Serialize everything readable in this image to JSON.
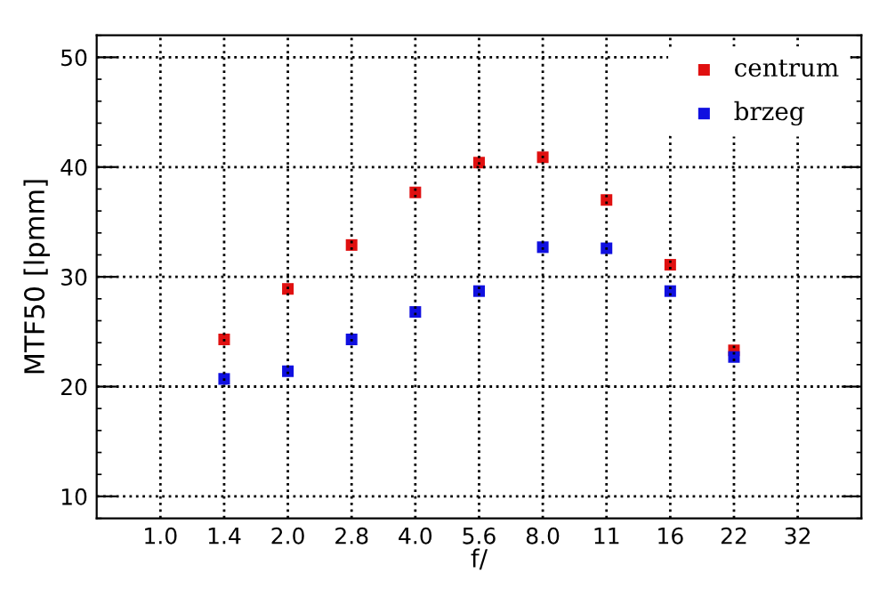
{
  "chart_data": {
    "type": "scatter",
    "xlabel": "f/",
    "ylabel": "MTF50 [lpmm]",
    "categories": [
      "1.0",
      "1.4",
      "2.0",
      "2.8",
      "4.0",
      "5.6",
      "8.0",
      "11",
      "16",
      "22",
      "32"
    ],
    "series": [
      {
        "name": "centrum",
        "color": "#e01010",
        "values": [
          null,
          24.3,
          28.9,
          32.9,
          37.7,
          40.4,
          40.9,
          37.0,
          31.1,
          23.3,
          null
        ]
      },
      {
        "name": "brzeg",
        "color": "#1010e0",
        "values": [
          null,
          20.7,
          21.4,
          24.3,
          26.8,
          28.7,
          32.7,
          32.6,
          28.7,
          22.7,
          null
        ]
      }
    ],
    "ylim": [
      8,
      52
    ],
    "yticks": [
      10,
      20,
      30,
      40,
      50
    ],
    "grid": true,
    "legend": "top right",
    "marker": "square"
  }
}
